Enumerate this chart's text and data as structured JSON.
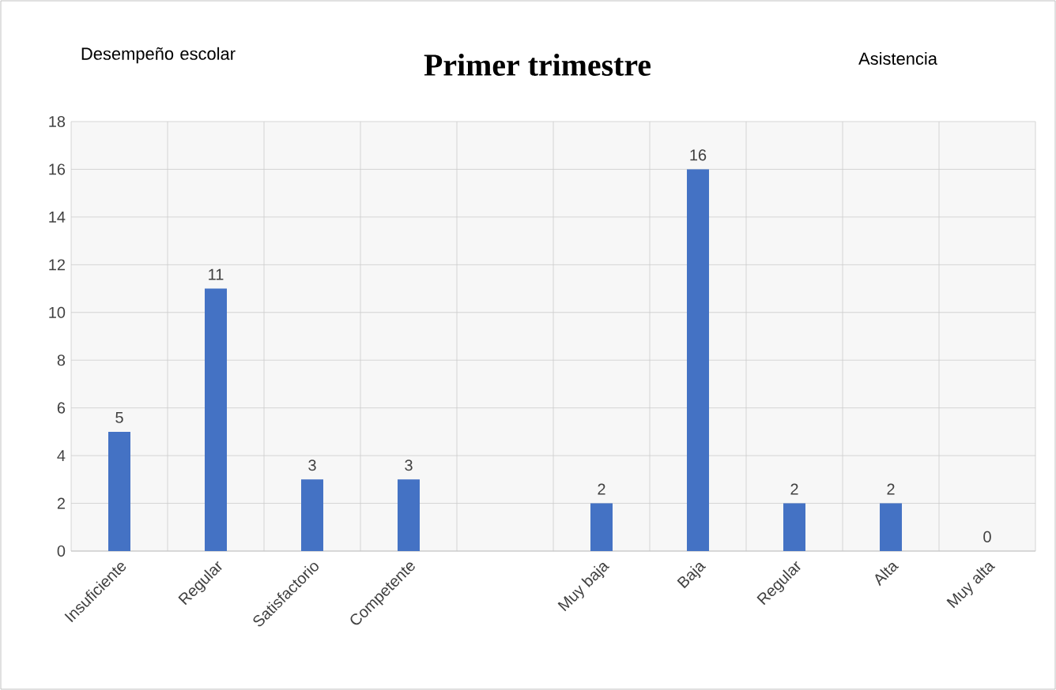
{
  "chart_data": {
    "type": "bar",
    "title": "Primer trimestre",
    "categories": [
      "Insuficiente",
      "Regular",
      "Satisfactorio",
      "Competente",
      null,
      "Muy baja",
      "Baja",
      "Regular",
      "Alta",
      "Muy alta"
    ],
    "values": [
      5,
      11,
      3,
      3,
      null,
      2,
      16,
      2,
      2,
      0
    ],
    "color": "#4472c4",
    "ylim": [
      0,
      18
    ],
    "yticks": [
      0,
      2,
      4,
      6,
      8,
      10,
      12,
      14,
      16,
      18
    ],
    "grid": true,
    "data_labels": true,
    "annotations": [
      "Desempeño escolar",
      "Asistencia"
    ]
  }
}
